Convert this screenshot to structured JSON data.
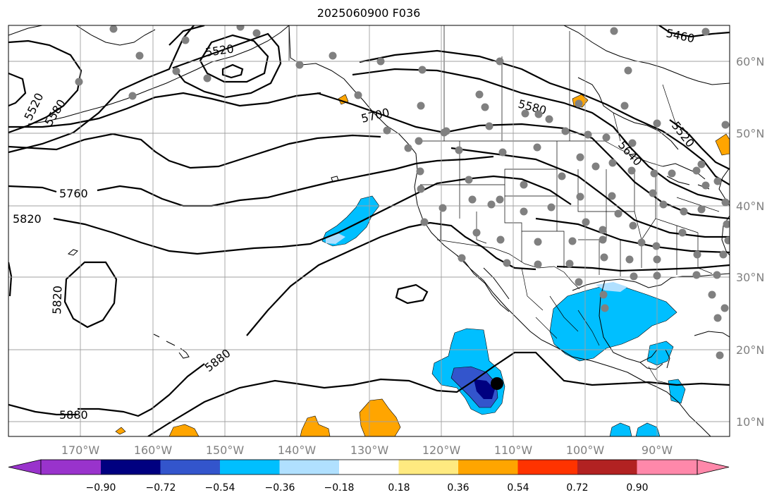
{
  "title": "2025060900 F036",
  "map": {
    "lon_ticks": [
      "170°W",
      "160°W",
      "150°W",
      "140°W",
      "130°W",
      "120°W",
      "110°W",
      "100°W",
      "90°W"
    ],
    "lat_ticks": [
      "60°N",
      "50°N",
      "40°N",
      "30°N",
      "20°N",
      "10°N"
    ],
    "contour_labels": [
      "5520",
      "5520",
      "5580",
      "5700",
      "5580",
      "5520",
      "5640",
      "5460",
      "5760",
      "5820",
      "5820",
      "5880",
      "5880"
    ],
    "gridlines": true,
    "colors": {
      "contour": "#000000",
      "coast": "#000000",
      "grid": "#a0a0a0",
      "station_dot": "#808080",
      "marker": "#000000"
    }
  },
  "colorbar": {
    "colors": [
      "#9933cc",
      "#000080",
      "#3355cc",
      "#00bfff",
      "#b0e0ff",
      "#ffffff",
      "#ffea80",
      "#ffa500",
      "#ff3300",
      "#b22222",
      "#ff88aa"
    ],
    "ticks": [
      "−0.90",
      "−0.72",
      "−0.54",
      "−0.36",
      "−0.18",
      "0.18",
      "0.36",
      "0.54",
      "0.72",
      "0.90"
    ]
  }
}
